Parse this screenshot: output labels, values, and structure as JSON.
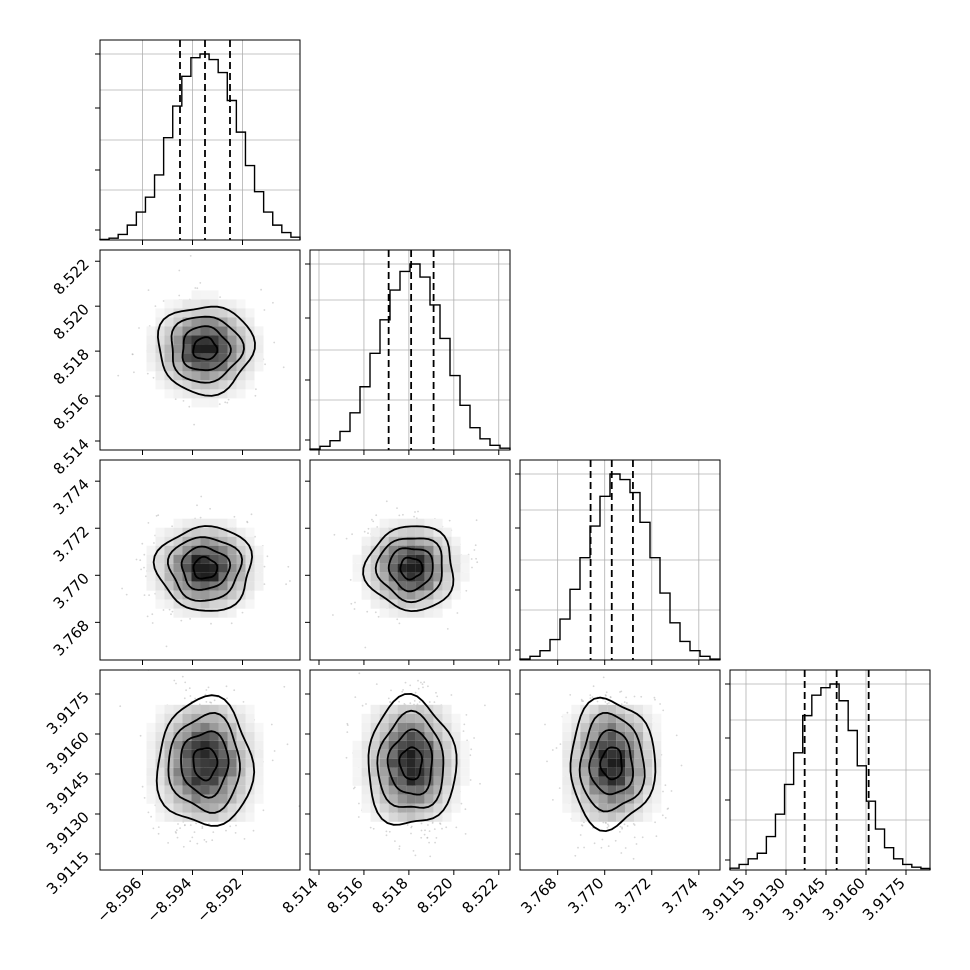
{
  "chart_data": {
    "type": "corner",
    "title": "",
    "grid": true,
    "n_params": 4,
    "params": [
      {
        "label": "",
        "median": -8.5935,
        "quantiles": [
          -8.5945,
          -8.5935,
          -8.5925
        ],
        "range": [
          -8.5977,
          -8.5897
        ],
        "ticks": [
          -8.596,
          -8.594,
          -8.592
        ],
        "tick_labels": [
          "−8.596",
          "−8.594",
          "−8.592"
        ],
        "hist_counts": [
          0.3,
          1,
          3,
          8,
          15,
          23,
          35,
          55,
          72,
          88,
          98,
          100,
          97,
          90,
          75,
          58,
          40,
          26,
          15,
          8,
          4,
          1.5
        ]
      },
      {
        "label": "",
        "median": 8.5181,
        "quantiles": [
          8.5171,
          8.5181,
          8.5191
        ],
        "range": [
          8.5136,
          8.5225
        ],
        "ticks": [
          8.514,
          8.516,
          8.518,
          8.52,
          8.522
        ],
        "tick_labels": [
          "8.514",
          "8.516",
          "8.518",
          "8.520",
          "8.522"
        ],
        "hist_counts": [
          0.5,
          2,
          5,
          10,
          20,
          34,
          52,
          70,
          86,
          96,
          100,
          93,
          78,
          60,
          40,
          24,
          12,
          6,
          2.5,
          1
        ]
      },
      {
        "label": "",
        "median": 3.7703,
        "quantiles": [
          3.7694,
          3.7703,
          3.7712
        ],
        "range": [
          3.7664,
          3.7749
        ],
        "ticks": [
          3.768,
          3.77,
          3.772,
          3.774
        ],
        "tick_labels": [
          "3.768",
          "3.770",
          "3.772",
          "3.774"
        ],
        "hist_counts": [
          0.5,
          2,
          5,
          11,
          22,
          38,
          55,
          72,
          88,
          100,
          97,
          90,
          74,
          55,
          36,
          20,
          10,
          5,
          2,
          0.5
        ]
      },
      {
        "label": "",
        "median": 3.9149,
        "quantiles": [
          3.9137,
          3.9149,
          3.9161
        ],
        "range": [
          3.9109,
          3.9184
        ],
        "ticks": [
          3.9115,
          3.913,
          3.9145,
          3.916,
          3.9175
        ],
        "tick_labels": [
          "3.9115",
          "3.9130",
          "3.9145",
          "3.9160",
          "3.9175"
        ],
        "hist_counts": [
          1,
          3,
          6,
          9,
          18,
          30,
          46,
          63,
          83,
          94,
          98,
          100,
          91,
          75,
          56,
          37,
          22,
          12,
          6,
          3,
          1.5,
          0.8
        ]
      }
    ],
    "pairs": [
      {
        "x_param": 0,
        "y_param": 1,
        "x_center": -8.5935,
        "y_center": 8.5181,
        "x_sigma": 0.00095,
        "y_sigma": 0.00098
      },
      {
        "x_param": 0,
        "y_param": 2,
        "x_center": -8.5935,
        "y_center": 3.7703,
        "x_sigma": 0.00095,
        "y_sigma": 0.0009
      },
      {
        "x_param": 1,
        "y_param": 2,
        "x_center": 8.5181,
        "y_center": 3.7703,
        "x_sigma": 0.00098,
        "y_sigma": 0.0009
      },
      {
        "x_param": 0,
        "y_param": 3,
        "x_center": -8.5935,
        "y_center": 3.9149,
        "x_sigma": 0.00095,
        "y_sigma": 0.0012
      },
      {
        "x_param": 1,
        "y_param": 3,
        "x_center": 8.5181,
        "y_center": 3.9149,
        "x_sigma": 0.00098,
        "y_sigma": 0.0012
      },
      {
        "x_param": 2,
        "y_param": 3,
        "x_center": 3.7703,
        "y_center": 3.9149,
        "x_sigma": 0.0009,
        "y_sigma": 0.0012
      }
    ],
    "contour_levels_sigma": [
      0.5,
      1.0,
      1.5,
      2.0
    ],
    "colors": {
      "hist": "#000000",
      "contour": "#000000",
      "points": "#b4b4b4",
      "density_dark": "#222222",
      "grid": "#b0b0b0"
    }
  }
}
